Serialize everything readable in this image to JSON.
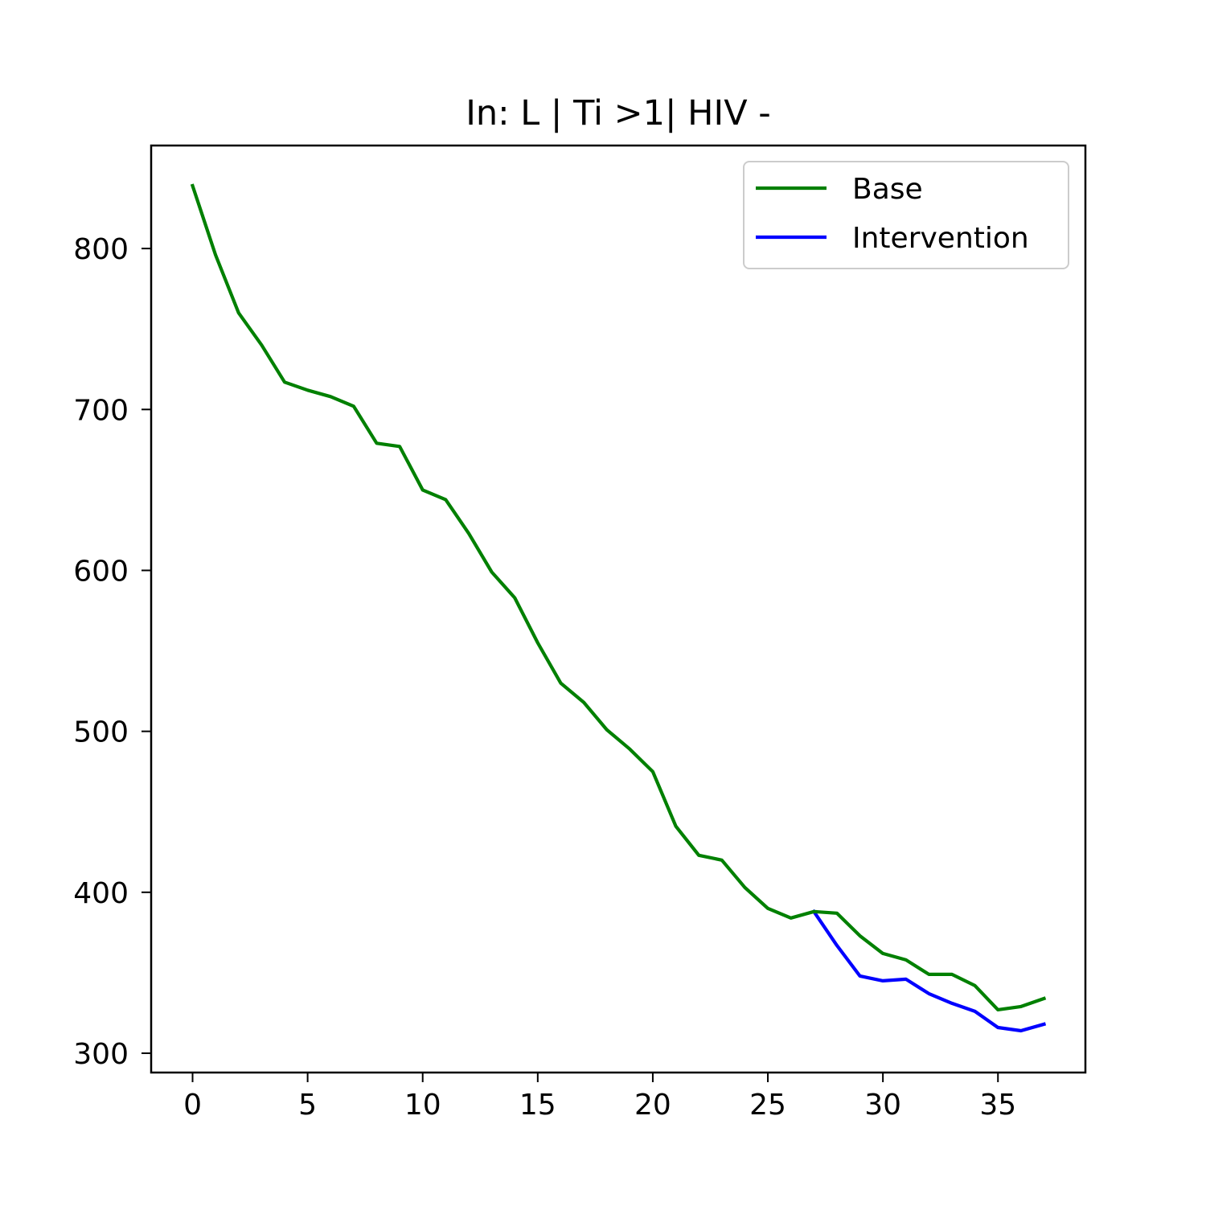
{
  "chart_data": {
    "type": "line",
    "title": "In: L | Ti >1| HIV -",
    "xlabel": "",
    "ylabel": "",
    "xlim": [
      -1.8,
      38.8
    ],
    "ylim": [
      288,
      864
    ],
    "xticks": [
      0,
      5,
      10,
      15,
      20,
      25,
      30,
      35
    ],
    "yticks": [
      300,
      400,
      500,
      600,
      700,
      800
    ],
    "grid": false,
    "legend_position": "top-right",
    "x": [
      0,
      1,
      2,
      3,
      4,
      5,
      6,
      7,
      8,
      9,
      10,
      11,
      12,
      13,
      14,
      15,
      16,
      17,
      18,
      19,
      20,
      21,
      22,
      23,
      24,
      25,
      26,
      27,
      28,
      29,
      30,
      31,
      32,
      33,
      34,
      35,
      36,
      37
    ],
    "series": [
      {
        "name": "Base",
        "color": "#008000",
        "x": [
          0,
          1,
          2,
          3,
          4,
          5,
          6,
          7,
          8,
          9,
          10,
          11,
          12,
          13,
          14,
          15,
          16,
          17,
          18,
          19,
          20,
          21,
          22,
          23,
          24,
          25,
          26,
          27,
          28,
          29,
          30,
          31,
          32,
          33,
          34,
          35,
          36,
          37
        ],
        "values": [
          839,
          796,
          760,
          740,
          717,
          712,
          708,
          702,
          679,
          677,
          650,
          644,
          623,
          599,
          583,
          555,
          530,
          518,
          501,
          489,
          475,
          441,
          423,
          420,
          403,
          390,
          384,
          388,
          387,
          373,
          362,
          358,
          349,
          349,
          342,
          327,
          329,
          334
        ]
      },
      {
        "name": "Intervention",
        "color": "#0000ff",
        "x": [
          27,
          28,
          29,
          30,
          31,
          32,
          33,
          34,
          35,
          36,
          37
        ],
        "values": [
          388,
          367,
          348,
          345,
          346,
          337,
          331,
          326,
          316,
          314,
          318
        ]
      }
    ]
  }
}
